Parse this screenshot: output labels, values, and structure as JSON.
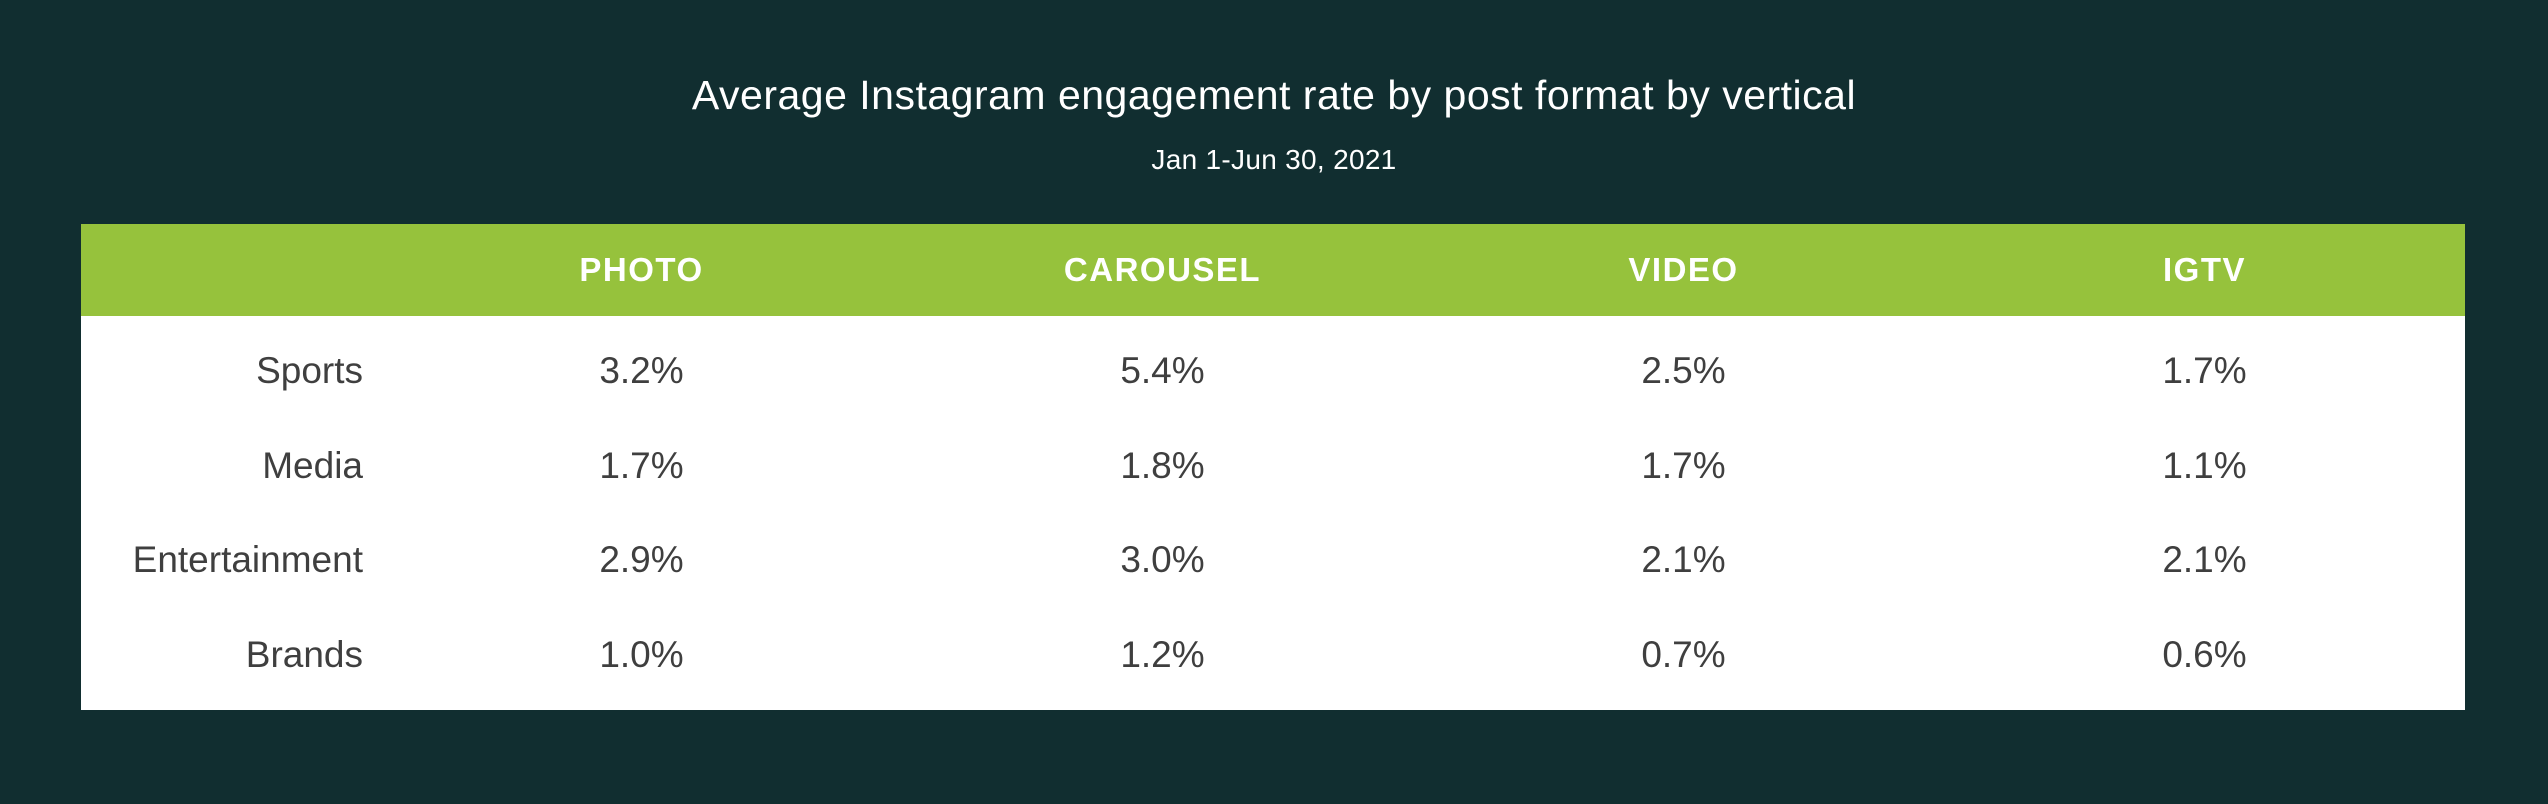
{
  "page": {
    "background_color": "#112e30",
    "accent_green": "#96c23c",
    "table_body_color": "#ffffff",
    "text_color_dark": "#3f3f3f",
    "text_color_light": "#ffffff"
  },
  "title": "Average Instagram engagement rate by post format by vertical",
  "subtitle": "Jan 1-Jun 30, 2021",
  "table": {
    "columns": [
      "PHOTO",
      "CAROUSEL",
      "VIDEO",
      "IGTV"
    ],
    "rows": [
      {
        "label": "Sports",
        "values": [
          "3.2%",
          "5.4%",
          "2.5%",
          "1.7%"
        ]
      },
      {
        "label": "Media",
        "values": [
          "1.7%",
          "1.8%",
          "1.7%",
          "1.1%"
        ]
      },
      {
        "label": "Entertainment",
        "values": [
          "2.9%",
          "3.0%",
          "2.1%",
          "2.1%"
        ]
      },
      {
        "label": "Brands",
        "values": [
          "1.0%",
          "1.2%",
          "0.7%",
          "0.6%"
        ]
      }
    ]
  },
  "chart_data": {
    "type": "table",
    "title": "Average Instagram engagement rate by post format by vertical",
    "subtitle": "Jan 1-Jun 30, 2021",
    "columns": [
      "PHOTO",
      "CAROUSEL",
      "VIDEO",
      "IGTV"
    ],
    "row_labels": [
      "Sports",
      "Media",
      "Entertainment",
      "Brands"
    ],
    "values_percent": [
      [
        3.2,
        5.4,
        2.5,
        1.7
      ],
      [
        1.7,
        1.8,
        1.7,
        1.1
      ],
      [
        2.9,
        3.0,
        2.1,
        2.1
      ],
      [
        1.0,
        1.2,
        0.7,
        0.6
      ]
    ],
    "unit": "%",
    "legend_position": "none",
    "grid": false
  }
}
